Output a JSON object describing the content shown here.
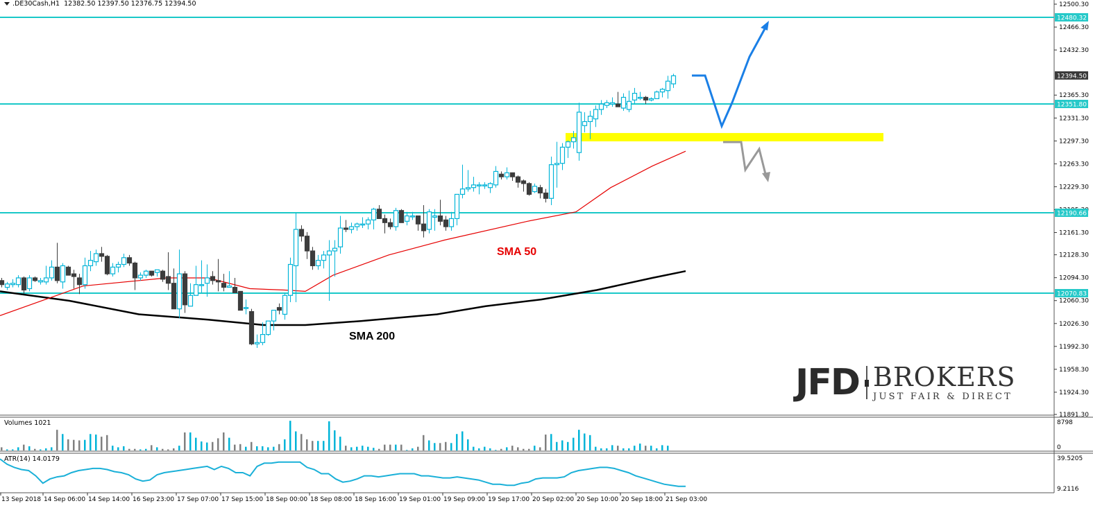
{
  "header": {
    "symbol": ".DE30Cash,H1",
    "ohlc": "12382.50 12397.50 12376.75 12394.50"
  },
  "annotations": {
    "sma50_label": "SMA 50",
    "sma200_label": "SMA 200",
    "sma50_color": "#e60000",
    "sma200_color": "#000000"
  },
  "logo": {
    "brand": "JFD",
    "name": "BROKERS",
    "tagline": "JUST FAIR & DIRECT"
  },
  "volumes_panel": {
    "title": "Volumes 1021",
    "max_label": "8798",
    "min_label": "0"
  },
  "atr_panel": {
    "title": "ATR(14) 14.0179",
    "max_label": "39.5205",
    "min_label": "9.2116"
  },
  "colors": {
    "bull": "#00b4d8",
    "bear": "#3c3c3c",
    "level_line": "#19c8c8",
    "level_label_bg": "#26c9c9",
    "current_price_bg": "#3a3a3a",
    "zone": "#ffff00",
    "arrow_blue": "#1a7fe6",
    "arrow_gray": "#999999",
    "atr": "#1ab0d8",
    "vol_up": "#00b4d8",
    "vol_down": "#808080"
  },
  "chart_data": {
    "type": "candlestick",
    "title": ".DE30Cash,H1",
    "price_axis": {
      "ticks": [
        "12500.30",
        "12466.30",
        "12432.30",
        "12365.30",
        "12331.30",
        "12297.30",
        "12263.30",
        "12229.30",
        "12195.30",
        "12161.30",
        "12128.30",
        "12094.30",
        "12060.30",
        "12026.30",
        "11992.30",
        "11958.30",
        "11924.30",
        "11891.30"
      ],
      "range": [
        11891.3,
        12500.3
      ]
    },
    "current_price": "12394.50",
    "horizontal_levels": [
      "12480.32",
      "12351.80",
      "12190.66",
      "12070.83"
    ],
    "support_zone": [
      12297,
      12308
    ],
    "x_axis_labels": [
      "13 Sep 2018",
      "14 Sep 06:00",
      "14 Sep 14:00",
      "16 Sep 23:00",
      "17 Sep 07:00",
      "17 Sep 15:00",
      "18 Sep 00:00",
      "18 Sep 08:00",
      "18 Sep 16:00",
      "19 Sep 01:00",
      "19 Sep 09:00",
      "19 Sep 17:00",
      "20 Sep 02:00",
      "20 Sep 10:00",
      "20 Sep 18:00",
      "21 Sep 03:00"
    ],
    "candles": [
      [
        12090,
        12094,
        12080,
        12084
      ],
      [
        12080,
        12088,
        12076,
        12085
      ],
      [
        12084,
        12092,
        12080,
        12086
      ],
      [
        12084,
        12098,
        12080,
        12094
      ],
      [
        12094,
        12096,
        12070,
        12076
      ],
      [
        12078,
        12098,
        12074,
        12094
      ],
      [
        12094,
        12096,
        12088,
        12090
      ],
      [
        12088,
        12094,
        12084,
        12090
      ],
      [
        12088,
        12112,
        12084,
        12094
      ],
      [
        12094,
        12120,
        12090,
        12110
      ],
      [
        12110,
        12146,
        12086,
        12090
      ],
      [
        12088,
        12116,
        12078,
        12112
      ],
      [
        12110,
        12112,
        12098,
        12098
      ],
      [
        12100,
        12106,
        12078,
        12096
      ],
      [
        12094,
        12100,
        12070,
        12084
      ],
      [
        12084,
        12124,
        12078,
        12112
      ],
      [
        12112,
        12134,
        12104,
        12120
      ],
      [
        12118,
        12136,
        12112,
        12130
      ],
      [
        12130,
        12140,
        12118,
        12126
      ],
      [
        12126,
        12128,
        12098,
        12100
      ],
      [
        12100,
        12116,
        12096,
        12110
      ],
      [
        12110,
        12118,
        12102,
        12114
      ],
      [
        12114,
        12130,
        12110,
        12124
      ],
      [
        12124,
        12128,
        12112,
        12116
      ],
      [
        12116,
        12118,
        12076,
        12094
      ],
      [
        12094,
        12102,
        12090,
        12098
      ],
      [
        12098,
        12106,
        12094,
        12104
      ],
      [
        12104,
        12104,
        12096,
        12098
      ],
      [
        12102,
        12106,
        12096,
        12106
      ],
      [
        12104,
        12106,
        12088,
        12092
      ],
      [
        12096,
        12132,
        12076,
        12086
      ],
      [
        12086,
        12108,
        12062,
        12048
      ],
      [
        12048,
        12136,
        12034,
        12100
      ],
      [
        12100,
        12104,
        12042,
        12054
      ],
      [
        12052,
        12086,
        12064,
        12068
      ],
      [
        12068,
        12112,
        12070,
        12084
      ],
      [
        12084,
        12120,
        12072,
        12084
      ],
      [
        12086,
        12114,
        12066,
        12094
      ],
      [
        12096,
        12104,
        12084,
        12090
      ],
      [
        12090,
        12122,
        12074,
        12088
      ],
      [
        12086,
        12100,
        12074,
        12080
      ],
      [
        12080,
        12104,
        12082,
        12082
      ],
      [
        12080,
        12094,
        12072,
        12072
      ],
      [
        12074,
        12072,
        12046,
        12046
      ],
      [
        12050,
        12062,
        12040,
        12050
      ],
      [
        12044,
        12048,
        11994,
        11996
      ],
      [
        11996,
        12010,
        11990,
        11998
      ],
      [
        11998,
        12028,
        11994,
        12010
      ],
      [
        12010,
        12030,
        12008,
        12030
      ],
      [
        12030,
        12040,
        12016,
        12046
      ],
      [
        12050,
        12056,
        12040,
        12046
      ],
      [
        12040,
        12072,
        12032,
        12068
      ],
      [
        12068,
        12124,
        12058,
        12114
      ],
      [
        12112,
        12190,
        12058,
        12166
      ],
      [
        12166,
        12172,
        12148,
        12156
      ],
      [
        12156,
        12162,
        12122,
        12134
      ],
      [
        12134,
        12140,
        12106,
        12112
      ],
      [
        12112,
        12128,
        12106,
        12120
      ],
      [
        12120,
        12134,
        12108,
        12128
      ],
      [
        12128,
        12150,
        12060,
        12134
      ],
      [
        12134,
        12150,
        12096,
        12138
      ],
      [
        12140,
        12186,
        12130,
        12168
      ],
      [
        12168,
        12180,
        12162,
        12166
      ],
      [
        12166,
        12176,
        12160,
        12170
      ],
      [
        12170,
        12176,
        12164,
        12174
      ],
      [
        12174,
        12184,
        12168,
        12174
      ],
      [
        12174,
        12184,
        12166,
        12180
      ],
      [
        12180,
        12198,
        12166,
        12196
      ],
      [
        12196,
        12202,
        12182,
        12182
      ],
      [
        12182,
        12188,
        12160,
        12176
      ],
      [
        12176,
        12182,
        12166,
        12170
      ],
      [
        12170,
        12198,
        12164,
        12194
      ],
      [
        12194,
        12196,
        12176,
        12176
      ],
      [
        12178,
        12192,
        12172,
        12186
      ],
      [
        12186,
        12192,
        12180,
        12186
      ],
      [
        12186,
        12186,
        12164,
        12174
      ],
      [
        12174,
        12202,
        12154,
        12164
      ],
      [
        12166,
        12196,
        12160,
        12192
      ],
      [
        12184,
        12196,
        12164,
        12186
      ],
      [
        12186,
        12210,
        12172,
        12178
      ],
      [
        12180,
        12186,
        12164,
        12170
      ],
      [
        12170,
        12192,
        12164,
        12182
      ],
      [
        12182,
        12202,
        12172,
        12218
      ],
      [
        12218,
        12262,
        12212,
        12226
      ],
      [
        12226,
        12254,
        12222,
        12228
      ],
      [
        12228,
        12244,
        12222,
        12232
      ],
      [
        12232,
        12236,
        12218,
        12232
      ],
      [
        12232,
        12236,
        12226,
        12232
      ],
      [
        12228,
        12236,
        12220,
        12234
      ],
      [
        12232,
        12260,
        12228,
        12252
      ],
      [
        12248,
        12252,
        12240,
        12244
      ],
      [
        12244,
        12258,
        12240,
        12250
      ],
      [
        12250,
        12250,
        12238,
        12244
      ],
      [
        12244,
        12246,
        12228,
        12236
      ],
      [
        12238,
        12240,
        12222,
        12234
      ],
      [
        12234,
        12236,
        12216,
        12218
      ],
      [
        12222,
        12234,
        12220,
        12230
      ],
      [
        12228,
        12232,
        12212,
        12220
      ],
      [
        12220,
        12226,
        12206,
        12212
      ],
      [
        12212,
        12274,
        12202,
        12262
      ],
      [
        12262,
        12296,
        12228,
        12264
      ],
      [
        12264,
        12294,
        12254,
        12288
      ],
      [
        12288,
        12298,
        12272,
        12296
      ],
      [
        12296,
        12312,
        12286,
        12302
      ],
      [
        12280,
        12354,
        12268,
        12340
      ],
      [
        12320,
        12340,
        12310,
        12326
      ],
      [
        12326,
        12342,
        12300,
        12334
      ],
      [
        12330,
        12350,
        12318,
        12344
      ],
      [
        12344,
        12358,
        12336,
        12352
      ],
      [
        12350,
        12358,
        12346,
        12354
      ],
      [
        12352,
        12362,
        12348,
        12354
      ],
      [
        12352,
        12370,
        12348,
        12348
      ],
      [
        12346,
        12368,
        12342,
        12362
      ],
      [
        12344,
        12372,
        12340,
        12356
      ],
      [
        12358,
        12376,
        12352,
        12368
      ],
      [
        12362,
        12370,
        12358,
        12362
      ],
      [
        12362,
        12364,
        12352,
        12358
      ],
      [
        12358,
        12362,
        12356,
        12360
      ],
      [
        12360,
        12372,
        12360,
        12370
      ],
      [
        12370,
        12376,
        12362,
        12374
      ],
      [
        12372,
        12394,
        12360,
        12386
      ],
      [
        12382,
        12397,
        12376,
        12394
      ]
    ],
    "volumes": [
      12,
      4,
      4,
      12,
      22,
      16,
      6,
      4,
      8,
      12,
      78,
      62,
      42,
      40,
      38,
      40,
      62,
      60,
      52,
      58,
      18,
      12,
      16,
      6,
      6,
      4,
      6,
      20,
      12,
      6,
      4,
      8,
      18,
      68,
      68,
      48,
      34,
      30,
      32,
      46,
      68,
      48,
      22,
      24,
      14,
      32,
      16,
      16,
      12,
      14,
      24,
      42,
      112,
      72,
      62,
      42,
      36,
      36,
      36,
      110,
      76,
      52,
      18,
      12,
      14,
      18,
      14,
      10,
      6,
      22,
      22,
      22,
      22,
      2,
      8,
      14,
      58,
      38,
      28,
      28,
      32,
      28,
      62,
      72,
      42,
      14,
      8,
      14,
      8,
      2,
      6,
      12,
      18,
      12,
      6,
      6,
      18,
      12,
      60,
      62,
      32,
      38,
      32,
      48,
      78,
      64,
      58,
      14,
      8,
      8,
      20,
      18,
      8,
      8,
      18,
      26,
      18,
      18,
      8,
      20,
      18
    ],
    "atr": [
      38,
      33,
      30,
      28,
      27,
      22,
      15,
      19,
      21,
      22,
      25,
      27,
      28,
      29,
      29,
      28,
      26,
      25,
      23,
      19,
      17,
      18,
      23,
      25,
      26,
      27,
      28,
      29,
      30,
      31,
      28,
      31,
      29,
      25,
      25,
      22,
      31,
      34,
      34,
      35,
      35,
      35,
      35,
      30,
      28,
      24,
      24,
      19,
      16,
      17,
      19,
      22,
      22,
      21,
      22,
      23,
      24,
      24,
      24,
      22,
      22,
      21,
      20,
      20,
      21,
      20,
      19,
      18,
      16,
      14,
      14,
      13,
      13,
      15,
      16,
      19,
      20,
      20,
      20,
      21,
      25,
      27,
      28,
      29,
      30,
      30,
      29,
      27,
      25,
      22,
      20,
      18,
      16,
      14,
      13,
      12,
      12
    ],
    "sma50": [
      [
        0,
        12038
      ],
      [
        120,
        12082
      ],
      [
        240,
        12094
      ],
      [
        300,
        12094
      ],
      [
        360,
        12078
      ],
      [
        410,
        12076
      ],
      [
        440,
        12074
      ],
      [
        480,
        12098
      ],
      [
        560,
        12128
      ],
      [
        640,
        12150
      ],
      [
        760,
        12178
      ],
      [
        830,
        12192
      ],
      [
        880,
        12228
      ],
      [
        940,
        12260
      ],
      [
        988,
        12282
      ]
    ],
    "sma200": [
      [
        0,
        12074
      ],
      [
        100,
        12060
      ],
      [
        200,
        12040
      ],
      [
        300,
        12032
      ],
      [
        380,
        12024
      ],
      [
        440,
        12024
      ],
      [
        520,
        12030
      ],
      [
        630,
        12040
      ],
      [
        700,
        12052
      ],
      [
        780,
        12062
      ],
      [
        860,
        12076
      ],
      [
        940,
        12094
      ],
      [
        988,
        12104
      ]
    ]
  }
}
